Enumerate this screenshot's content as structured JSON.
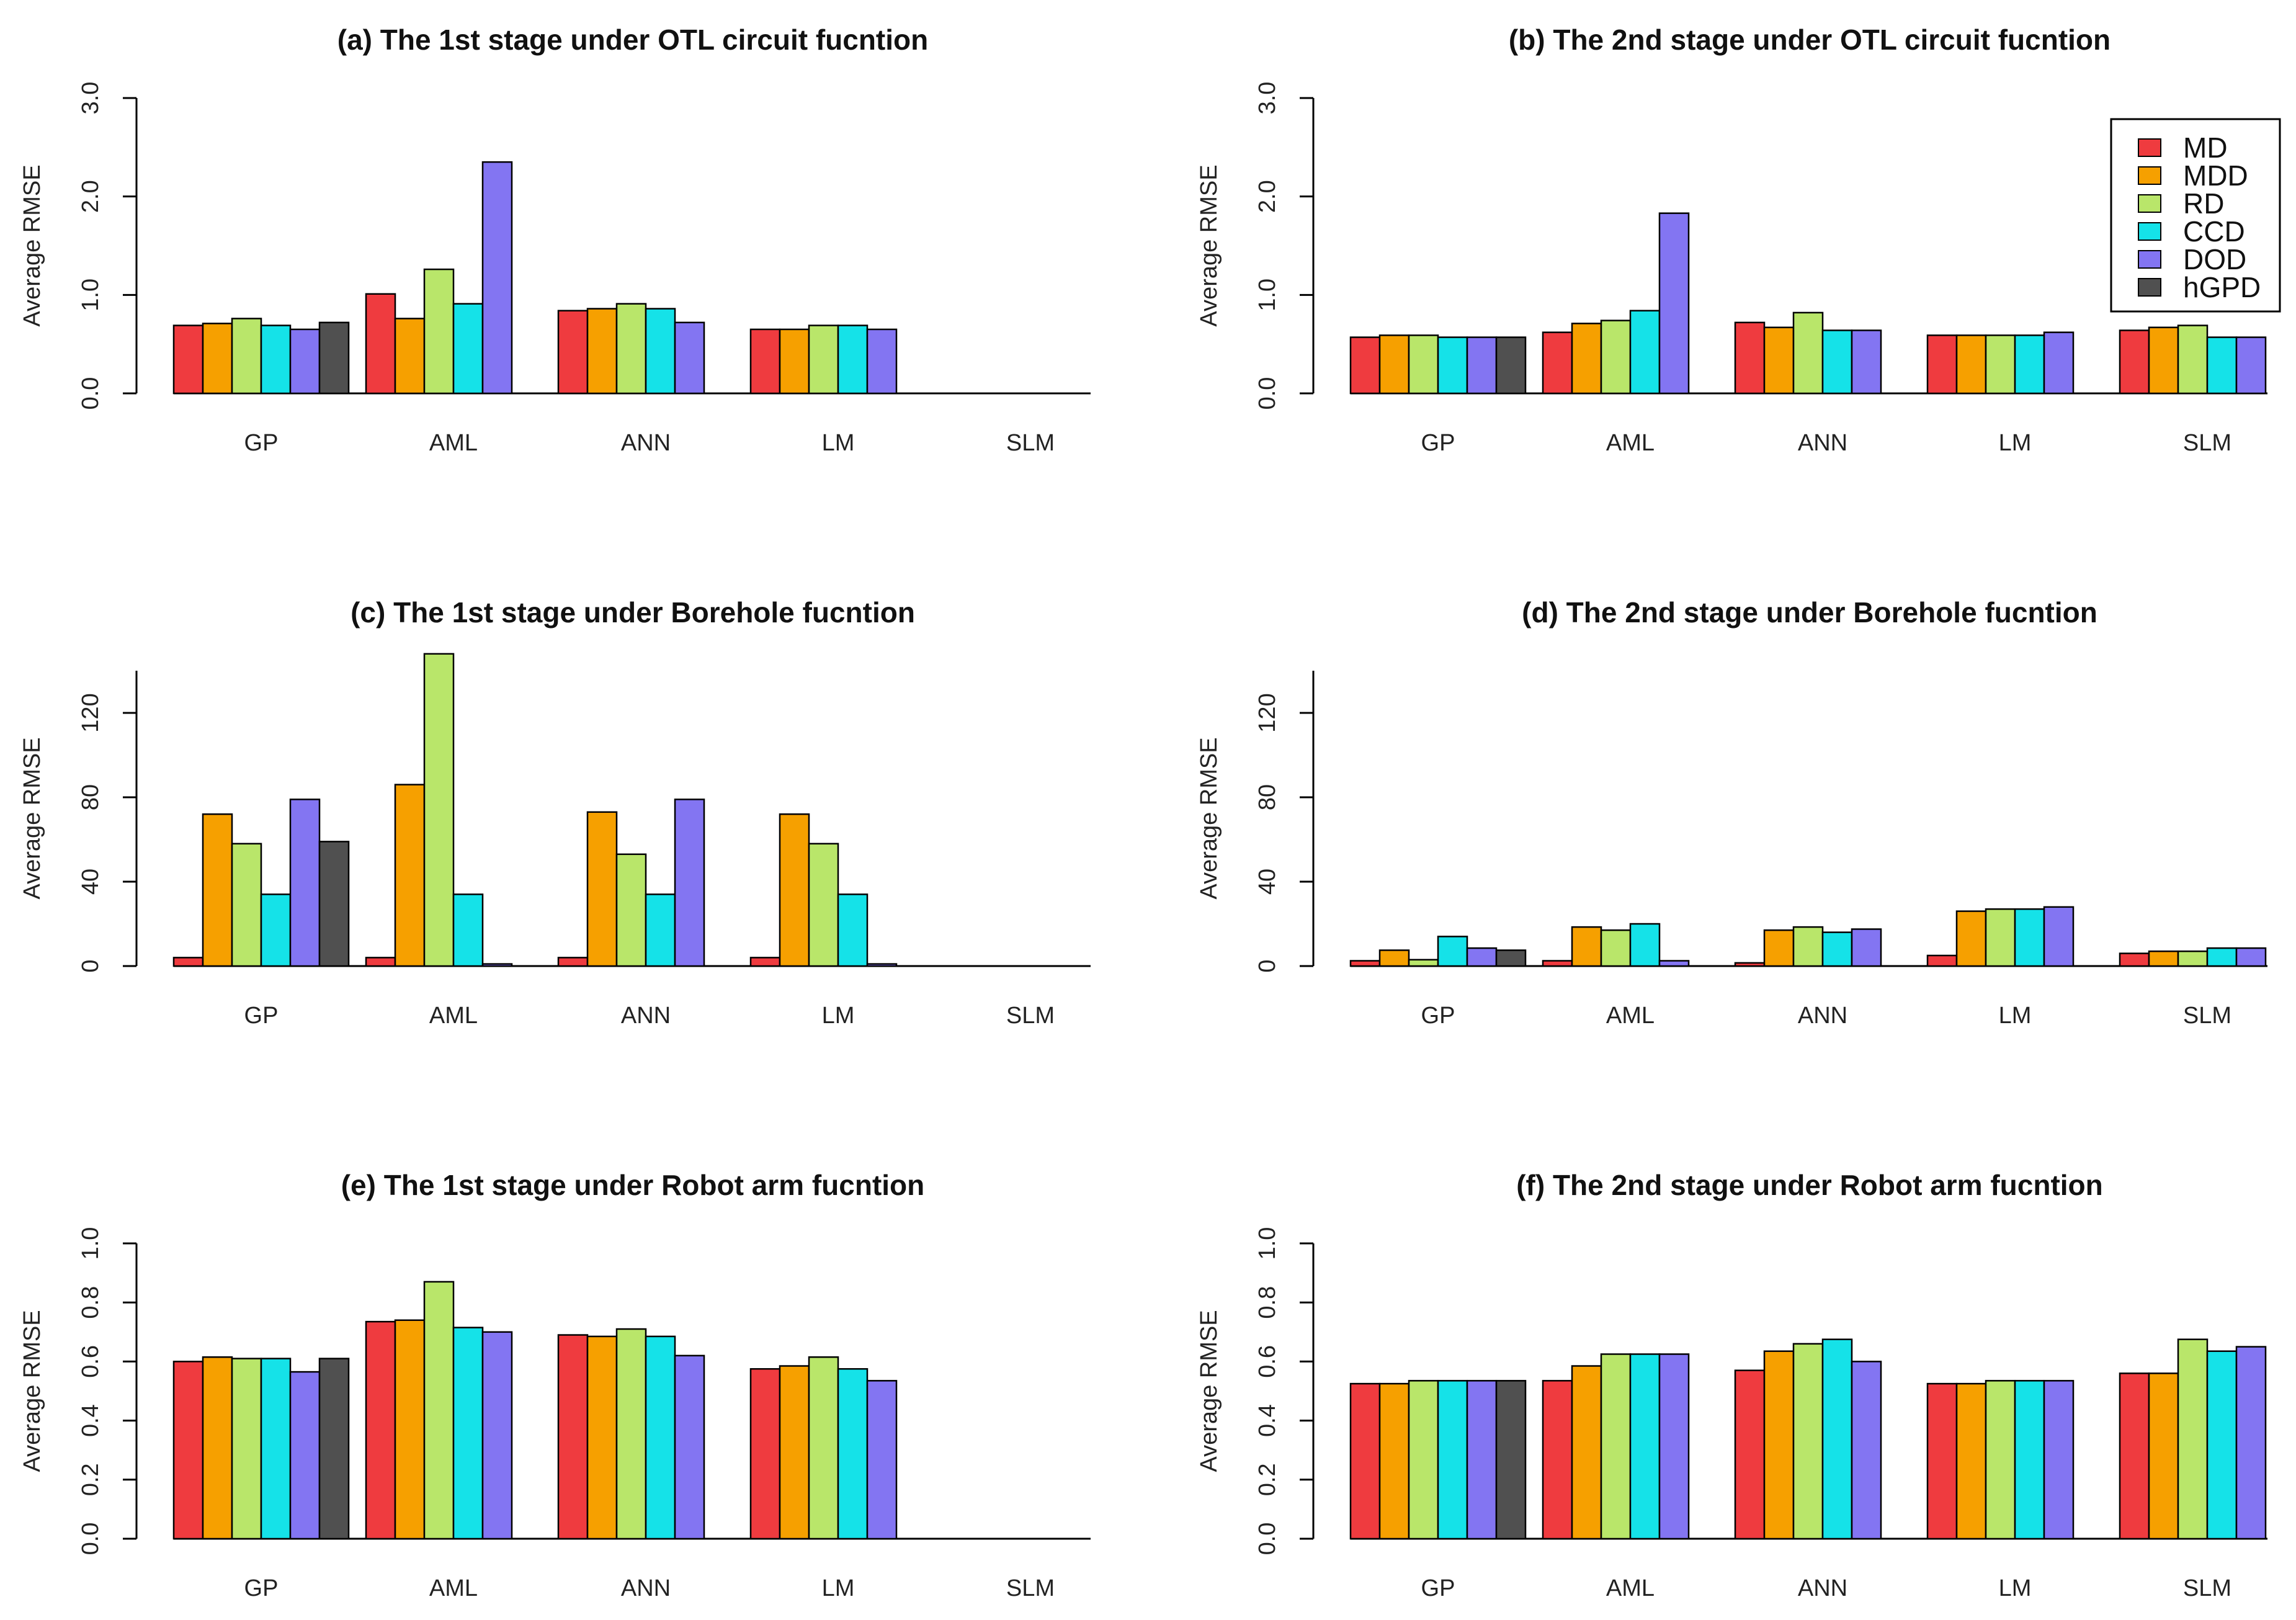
{
  "colors": {
    "MD": "#ef3b3f",
    "MDD": "#f6a000",
    "RD": "#b9e66a",
    "CCD": "#15e2e8",
    "DOD": "#8375f2",
    "hGPD": "#505050"
  },
  "legend": {
    "position": "top-right",
    "entries": [
      "MD",
      "MDD",
      "RD",
      "CCD",
      "DOD",
      "hGPD"
    ]
  },
  "chart_data": [
    {
      "type": "bar",
      "title": "(a) The 1st stage under OTL circuit fucntion",
      "ylabel": "Average RMSE",
      "ylim": [
        0,
        3.0
      ],
      "yticks": [
        "0.0",
        "1.0",
        "2.0",
        "3.0"
      ],
      "ytick_values": [
        0,
        1,
        2,
        3
      ],
      "categories": [
        "GP",
        "AML",
        "ANN",
        "LM",
        "SLM"
      ],
      "series": [
        {
          "name": "MD",
          "values": [
            0.69,
            1.01,
            0.84,
            0.65,
            null
          ]
        },
        {
          "name": "MDD",
          "values": [
            0.71,
            0.76,
            0.86,
            0.65,
            null
          ]
        },
        {
          "name": "RD",
          "values": [
            0.76,
            1.26,
            0.91,
            0.69,
            null
          ]
        },
        {
          "name": "CCD",
          "values": [
            0.69,
            0.91,
            0.86,
            0.69,
            null
          ]
        },
        {
          "name": "DOD",
          "values": [
            0.65,
            2.35,
            0.72,
            0.65,
            null
          ]
        },
        {
          "name": "hGPD",
          "values": [
            0.72,
            null,
            null,
            null,
            null
          ]
        }
      ]
    },
    {
      "type": "bar",
      "title": "(b) The 2nd stage under OTL circuit fucntion",
      "ylabel": "Average RMSE",
      "ylim": [
        0,
        3.0
      ],
      "yticks": [
        "0.0",
        "1.0",
        "2.0",
        "3.0"
      ],
      "ytick_values": [
        0,
        1,
        2,
        3
      ],
      "categories": [
        "GP",
        "AML",
        "ANN",
        "LM",
        "SLM"
      ],
      "series": [
        {
          "name": "MD",
          "values": [
            0.57,
            0.62,
            0.72,
            0.59,
            0.64
          ]
        },
        {
          "name": "MDD",
          "values": [
            0.59,
            0.71,
            0.67,
            0.59,
            0.67
          ]
        },
        {
          "name": "RD",
          "values": [
            0.59,
            0.74,
            0.82,
            0.59,
            0.69
          ]
        },
        {
          "name": "CCD",
          "values": [
            0.57,
            0.84,
            0.64,
            0.59,
            0.57
          ]
        },
        {
          "name": "DOD",
          "values": [
            0.57,
            1.83,
            0.64,
            0.62,
            0.57
          ]
        },
        {
          "name": "hGPD",
          "values": [
            0.57,
            null,
            null,
            null,
            null
          ]
        }
      ]
    },
    {
      "type": "bar",
      "title": "(c) The 1st stage under Borehole fucntion",
      "ylabel": "Average RMSE",
      "ylim": [
        0,
        140
      ],
      "yticks": [
        "0",
        "40",
        "80",
        "120"
      ],
      "ytick_values": [
        0,
        40,
        80,
        120
      ],
      "categories": [
        "GP",
        "AML",
        "ANN",
        "LM",
        "SLM"
      ],
      "series": [
        {
          "name": "MD",
          "values": [
            4,
            4,
            4,
            4,
            null
          ]
        },
        {
          "name": "MDD",
          "values": [
            72,
            86,
            73,
            72,
            null
          ]
        },
        {
          "name": "RD",
          "values": [
            58,
            148,
            53,
            58,
            null
          ]
        },
        {
          "name": "CCD",
          "values": [
            34,
            34,
            34,
            34,
            null
          ]
        },
        {
          "name": "DOD",
          "values": [
            79,
            1,
            79,
            1,
            null
          ]
        },
        {
          "name": "hGPD",
          "values": [
            59,
            null,
            null,
            null,
            null
          ]
        }
      ]
    },
    {
      "type": "bar",
      "title": "(d) The 2nd stage under Borehole fucntion",
      "ylabel": "Average RMSE",
      "ylim": [
        0,
        140
      ],
      "yticks": [
        "0",
        "40",
        "80",
        "120"
      ],
      "ytick_values": [
        0,
        40,
        80,
        120
      ],
      "categories": [
        "GP",
        "AML",
        "ANN",
        "LM",
        "SLM"
      ],
      "series": [
        {
          "name": "MD",
          "values": [
            2.5,
            2.5,
            1.5,
            5,
            6
          ]
        },
        {
          "name": "MDD",
          "values": [
            7.5,
            18.5,
            17,
            26,
            7
          ]
        },
        {
          "name": "RD",
          "values": [
            3,
            17,
            18.5,
            27,
            7
          ]
        },
        {
          "name": "CCD",
          "values": [
            14,
            20,
            16,
            27,
            8.5
          ]
        },
        {
          "name": "DOD",
          "values": [
            8.5,
            2.5,
            17.5,
            28,
            8.5
          ]
        },
        {
          "name": "hGPD",
          "values": [
            7.5,
            null,
            null,
            null,
            null
          ]
        }
      ]
    },
    {
      "type": "bar",
      "title": "(e) The 1st stage under Robot arm fucntion",
      "ylabel": "Average RMSE",
      "ylim": [
        0,
        1.0
      ],
      "yticks": [
        "0.0",
        "0.2",
        "0.4",
        "0.6",
        "0.8",
        "1.0"
      ],
      "ytick_values": [
        0,
        0.2,
        0.4,
        0.6,
        0.8,
        1.0
      ],
      "categories": [
        "GP",
        "AML",
        "ANN",
        "LM",
        "SLM"
      ],
      "series": [
        {
          "name": "MD",
          "values": [
            0.6,
            0.735,
            0.69,
            0.575,
            null
          ]
        },
        {
          "name": "MDD",
          "values": [
            0.615,
            0.74,
            0.685,
            0.585,
            null
          ]
        },
        {
          "name": "RD",
          "values": [
            0.61,
            0.87,
            0.71,
            0.615,
            null
          ]
        },
        {
          "name": "CCD",
          "values": [
            0.61,
            0.715,
            0.685,
            0.575,
            null
          ]
        },
        {
          "name": "DOD",
          "values": [
            0.565,
            0.7,
            0.62,
            0.535,
            null
          ]
        },
        {
          "name": "hGPD",
          "values": [
            0.61,
            null,
            null,
            null,
            null
          ]
        }
      ]
    },
    {
      "type": "bar",
      "title": "(f) The 2nd stage under Robot arm fucntion",
      "ylabel": "Average RMSE",
      "ylim": [
        0,
        1.0
      ],
      "yticks": [
        "0.0",
        "0.2",
        "0.4",
        "0.6",
        "0.8",
        "1.0"
      ],
      "ytick_values": [
        0,
        0.2,
        0.4,
        0.6,
        0.8,
        1.0
      ],
      "categories": [
        "GP",
        "AML",
        "ANN",
        "LM",
        "SLM"
      ],
      "series": [
        {
          "name": "MD",
          "values": [
            0.525,
            0.535,
            0.57,
            0.525,
            0.56
          ]
        },
        {
          "name": "MDD",
          "values": [
            0.525,
            0.585,
            0.635,
            0.525,
            0.56
          ]
        },
        {
          "name": "RD",
          "values": [
            0.535,
            0.625,
            0.66,
            0.535,
            0.675
          ]
        },
        {
          "name": "CCD",
          "values": [
            0.535,
            0.625,
            0.675,
            0.535,
            0.635
          ]
        },
        {
          "name": "DOD",
          "values": [
            0.535,
            0.625,
            0.6,
            0.535,
            0.65
          ]
        },
        {
          "name": "hGPD",
          "values": [
            0.535,
            null,
            null,
            null,
            null
          ]
        }
      ]
    }
  ]
}
